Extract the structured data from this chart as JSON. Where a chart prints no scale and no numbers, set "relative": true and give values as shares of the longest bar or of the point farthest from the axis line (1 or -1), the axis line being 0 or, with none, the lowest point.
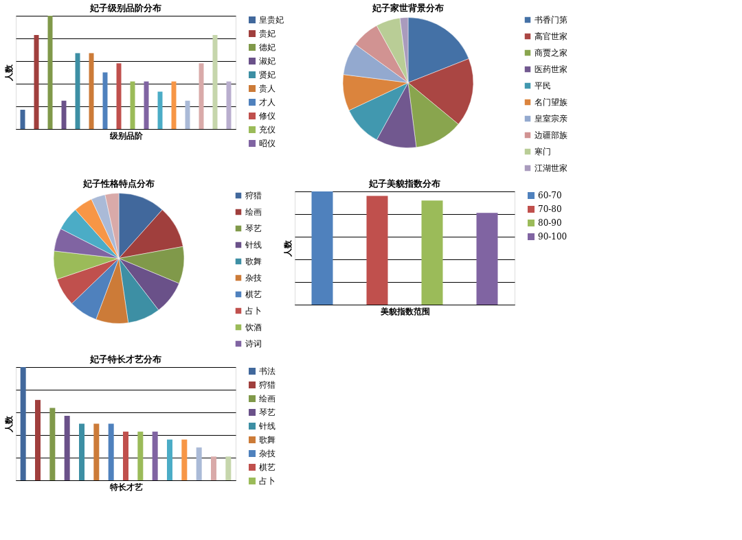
{
  "chart_data": [
    {
      "type": "bar",
      "title": "妃子级别品阶分布",
      "xlabel": "级别品阶",
      "ylabel": "人数",
      "relative": true,
      "stacked": true,
      "grid": "y",
      "legend": "right",
      "tick_labels": false,
      "categories": [
        null,
        null,
        null,
        null,
        null,
        null,
        null,
        null,
        null,
        null,
        null,
        null,
        null,
        null,
        null,
        null
      ],
      "series": [
        {
          "name": "皇贵妃",
          "color": "#41689c",
          "values": [
            0.17,
            null,
            null,
            null,
            null,
            null,
            null,
            null,
            null,
            null,
            null,
            null,
            null,
            null,
            null,
            null
          ]
        },
        {
          "name": "贵妃",
          "color": "#a03f3d",
          "values": [
            null,
            0.83,
            null,
            null,
            null,
            null,
            null,
            null,
            null,
            null,
            null,
            null,
            null,
            null,
            null,
            null
          ]
        },
        {
          "name": "德妃",
          "color": "#80994a",
          "values": [
            null,
            null,
            1,
            null,
            null,
            null,
            null,
            null,
            null,
            null,
            null,
            null,
            null,
            null,
            null,
            null
          ]
        },
        {
          "name": "淑妃",
          "color": "#6a5189",
          "values": [
            null,
            null,
            null,
            0.25,
            null,
            null,
            null,
            null,
            null,
            null,
            null,
            null,
            null,
            null,
            null,
            null
          ]
        },
        {
          "name": "贤妃",
          "color": "#3d8fa4",
          "values": [
            null,
            null,
            null,
            null,
            0.67,
            null,
            null,
            null,
            null,
            null,
            null,
            null,
            null,
            null,
            null,
            null
          ]
        },
        {
          "name": "贵人",
          "color": "#cc7b38",
          "values": [
            null,
            null,
            null,
            null,
            null,
            0.67,
            null,
            null,
            null,
            null,
            null,
            null,
            null,
            null,
            null,
            null
          ]
        },
        {
          "name": "才人",
          "color": "#4f81bd",
          "values": [
            null,
            null,
            null,
            null,
            null,
            null,
            0.5,
            null,
            null,
            null,
            null,
            null,
            null,
            null,
            null,
            null
          ]
        },
        {
          "name": "修仪",
          "color": "#c0504d",
          "values": [
            null,
            null,
            null,
            null,
            null,
            null,
            null,
            0.58,
            null,
            null,
            null,
            null,
            null,
            null,
            null,
            null
          ]
        },
        {
          "name": "充仪",
          "color": "#9bbb59",
          "values": [
            null,
            null,
            null,
            null,
            null,
            null,
            null,
            null,
            0.42,
            null,
            null,
            null,
            null,
            null,
            null,
            null
          ]
        },
        {
          "name": "昭仪",
          "color": "#8064a2",
          "values": [
            null,
            null,
            null,
            null,
            null,
            null,
            null,
            null,
            null,
            0.42,
            null,
            null,
            null,
            null,
            null,
            null
          ]
        },
        {
          "color": "#4bacc6",
          "values": [
            null,
            null,
            null,
            null,
            null,
            null,
            null,
            null,
            null,
            null,
            0.33,
            null,
            null,
            null,
            null,
            null
          ]
        },
        {
          "color": "#f79646",
          "values": [
            null,
            null,
            null,
            null,
            null,
            null,
            null,
            null,
            null,
            null,
            null,
            0.42,
            null,
            null,
            null,
            null
          ]
        },
        {
          "color": "#aabad7",
          "values": [
            null,
            null,
            null,
            null,
            null,
            null,
            null,
            null,
            null,
            null,
            null,
            null,
            0.25,
            null,
            null,
            null
          ]
        },
        {
          "color": "#d9aaa9",
          "values": [
            null,
            null,
            null,
            null,
            null,
            null,
            null,
            null,
            null,
            null,
            null,
            null,
            null,
            0.58,
            null,
            null
          ]
        },
        {
          "color": "#c6d6ac",
          "values": [
            null,
            null,
            null,
            null,
            null,
            null,
            null,
            null,
            null,
            null,
            null,
            null,
            null,
            null,
            0.83,
            null
          ]
        },
        {
          "color": "#b9aece",
          "values": [
            null,
            null,
            null,
            null,
            null,
            null,
            null,
            null,
            null,
            null,
            null,
            null,
            null,
            null,
            null,
            0.42
          ]
        }
      ]
    },
    {
      "type": "pie",
      "title": "妃子家世背景分布",
      "legend": "right",
      "categories": [
        "书香门第",
        "高官世家",
        "商贾之家",
        "医药世家",
        "平民",
        "名门望族",
        "皇室宗亲",
        "边疆部族",
        "寒门",
        "江湖世家"
      ],
      "values": [
        19,
        17,
        12,
        10,
        10,
        9,
        8,
        7,
        6,
        2
      ],
      "colors": [
        "#4471a6",
        "#aa4643",
        "#89a54e",
        "#71588f",
        "#4198af",
        "#db843d",
        "#93a9cf",
        "#d19392",
        "#b9cd96",
        "#a99bbd"
      ]
    },
    {
      "type": "pie",
      "title": "妃子性格特点分布",
      "legend": "right",
      "categories": [
        "狩猎",
        "绘画",
        "琴艺",
        "针线",
        "歌舞",
        "杂技",
        "棋艺",
        "占卜",
        "饮酒",
        "诗词",
        null,
        null,
        null,
        null
      ],
      "values": [
        11.6,
        10.5,
        9.2,
        8.3,
        8.1,
        8.0,
        7.1,
        7.0,
        7.0,
        5.7,
        5.9,
        4.7,
        3.5,
        3.4
      ],
      "colors": [
        "#41689c",
        "#a03f3d",
        "#80994a",
        "#6a5189",
        "#3d8fa4",
        "#cc7b38",
        "#4f81bd",
        "#c0504d",
        "#9bbb59",
        "#8064a2",
        "#4bacc6",
        "#f79646",
        "#aabad7",
        "#d9aaa9"
      ]
    },
    {
      "type": "bar",
      "title": "妃子美貌指数分布",
      "xlabel": "美貌指数范围",
      "ylabel": "人数",
      "relative": true,
      "stacked": true,
      "grid": "y",
      "legend": "right",
      "tick_labels": false,
      "categories": [
        null,
        null,
        null,
        null
      ],
      "series": [
        {
          "name": "60-70",
          "color": "#4f81bd",
          "values": [
            1,
            null,
            null,
            null
          ]
        },
        {
          "name": "70-80",
          "color": "#c0504d",
          "values": [
            null,
            0.96,
            null,
            null
          ]
        },
        {
          "name": "80-90",
          "color": "#9bbb59",
          "values": [
            null,
            null,
            0.92,
            null
          ]
        },
        {
          "name": "90-100",
          "color": "#8064a2",
          "values": [
            null,
            null,
            null,
            0.81
          ]
        }
      ]
    },
    {
      "type": "bar",
      "title": "妃子特长才艺分布",
      "xlabel": "特长才艺",
      "ylabel": "人数",
      "relative": true,
      "stacked": true,
      "grid": "y",
      "legend": "right",
      "tick_labels": false,
      "categories": [
        null,
        null,
        null,
        null,
        null,
        null,
        null,
        null,
        null,
        null,
        null,
        null,
        null,
        null,
        null
      ],
      "series": [
        {
          "name": "书法",
          "color": "#41689c",
          "values": [
            1,
            null,
            null,
            null,
            null,
            null,
            null,
            null,
            null,
            null,
            null,
            null,
            null,
            null,
            null
          ]
        },
        {
          "name": "狩猎",
          "color": "#a03f3d",
          "values": [
            null,
            0.71,
            null,
            null,
            null,
            null,
            null,
            null,
            null,
            null,
            null,
            null,
            null,
            null,
            null
          ]
        },
        {
          "name": "绘画",
          "color": "#80994a",
          "values": [
            null,
            null,
            0.64,
            null,
            null,
            null,
            null,
            null,
            null,
            null,
            null,
            null,
            null,
            null,
            null
          ]
        },
        {
          "name": "琴艺",
          "color": "#6a5189",
          "values": [
            null,
            null,
            null,
            0.57,
            null,
            null,
            null,
            null,
            null,
            null,
            null,
            null,
            null,
            null,
            null
          ]
        },
        {
          "name": "针线",
          "color": "#3d8fa4",
          "values": [
            null,
            null,
            null,
            null,
            0.5,
            null,
            null,
            null,
            null,
            null,
            null,
            null,
            null,
            null,
            null
          ]
        },
        {
          "name": "歌舞",
          "color": "#cc7b38",
          "values": [
            null,
            null,
            null,
            null,
            null,
            0.5,
            null,
            null,
            null,
            null,
            null,
            null,
            null,
            null,
            null
          ]
        },
        {
          "name": "杂技",
          "color": "#4f81bd",
          "values": [
            null,
            null,
            null,
            null,
            null,
            null,
            0.5,
            null,
            null,
            null,
            null,
            null,
            null,
            null,
            null
          ]
        },
        {
          "name": "棋艺",
          "color": "#c0504d",
          "values": [
            null,
            null,
            null,
            null,
            null,
            null,
            null,
            0.43,
            null,
            null,
            null,
            null,
            null,
            null,
            null
          ]
        },
        {
          "name": "占卜",
          "color": "#9bbb59",
          "values": [
            null,
            null,
            null,
            null,
            null,
            null,
            null,
            null,
            0.43,
            null,
            null,
            null,
            null,
            null,
            null
          ]
        },
        {
          "color": "#8064a2",
          "values": [
            null,
            null,
            null,
            null,
            null,
            null,
            null,
            null,
            null,
            0.43,
            null,
            null,
            null,
            null,
            null
          ]
        },
        {
          "color": "#4bacc6",
          "values": [
            null,
            null,
            null,
            null,
            null,
            null,
            null,
            null,
            null,
            null,
            0.36,
            null,
            null,
            null,
            null
          ]
        },
        {
          "color": "#f79646",
          "values": [
            null,
            null,
            null,
            null,
            null,
            null,
            null,
            null,
            null,
            null,
            null,
            0.36,
            null,
            null,
            null
          ]
        },
        {
          "color": "#aabad7",
          "values": [
            null,
            null,
            null,
            null,
            null,
            null,
            null,
            null,
            null,
            null,
            null,
            null,
            0.29,
            null,
            null
          ]
        },
        {
          "color": "#d9aaa9",
          "values": [
            null,
            null,
            null,
            null,
            null,
            null,
            null,
            null,
            null,
            null,
            null,
            null,
            null,
            0.21,
            null
          ]
        },
        {
          "color": "#c6d6ac",
          "values": [
            null,
            null,
            null,
            null,
            null,
            null,
            null,
            null,
            null,
            null,
            null,
            null,
            null,
            null,
            0.21
          ]
        }
      ]
    }
  ]
}
